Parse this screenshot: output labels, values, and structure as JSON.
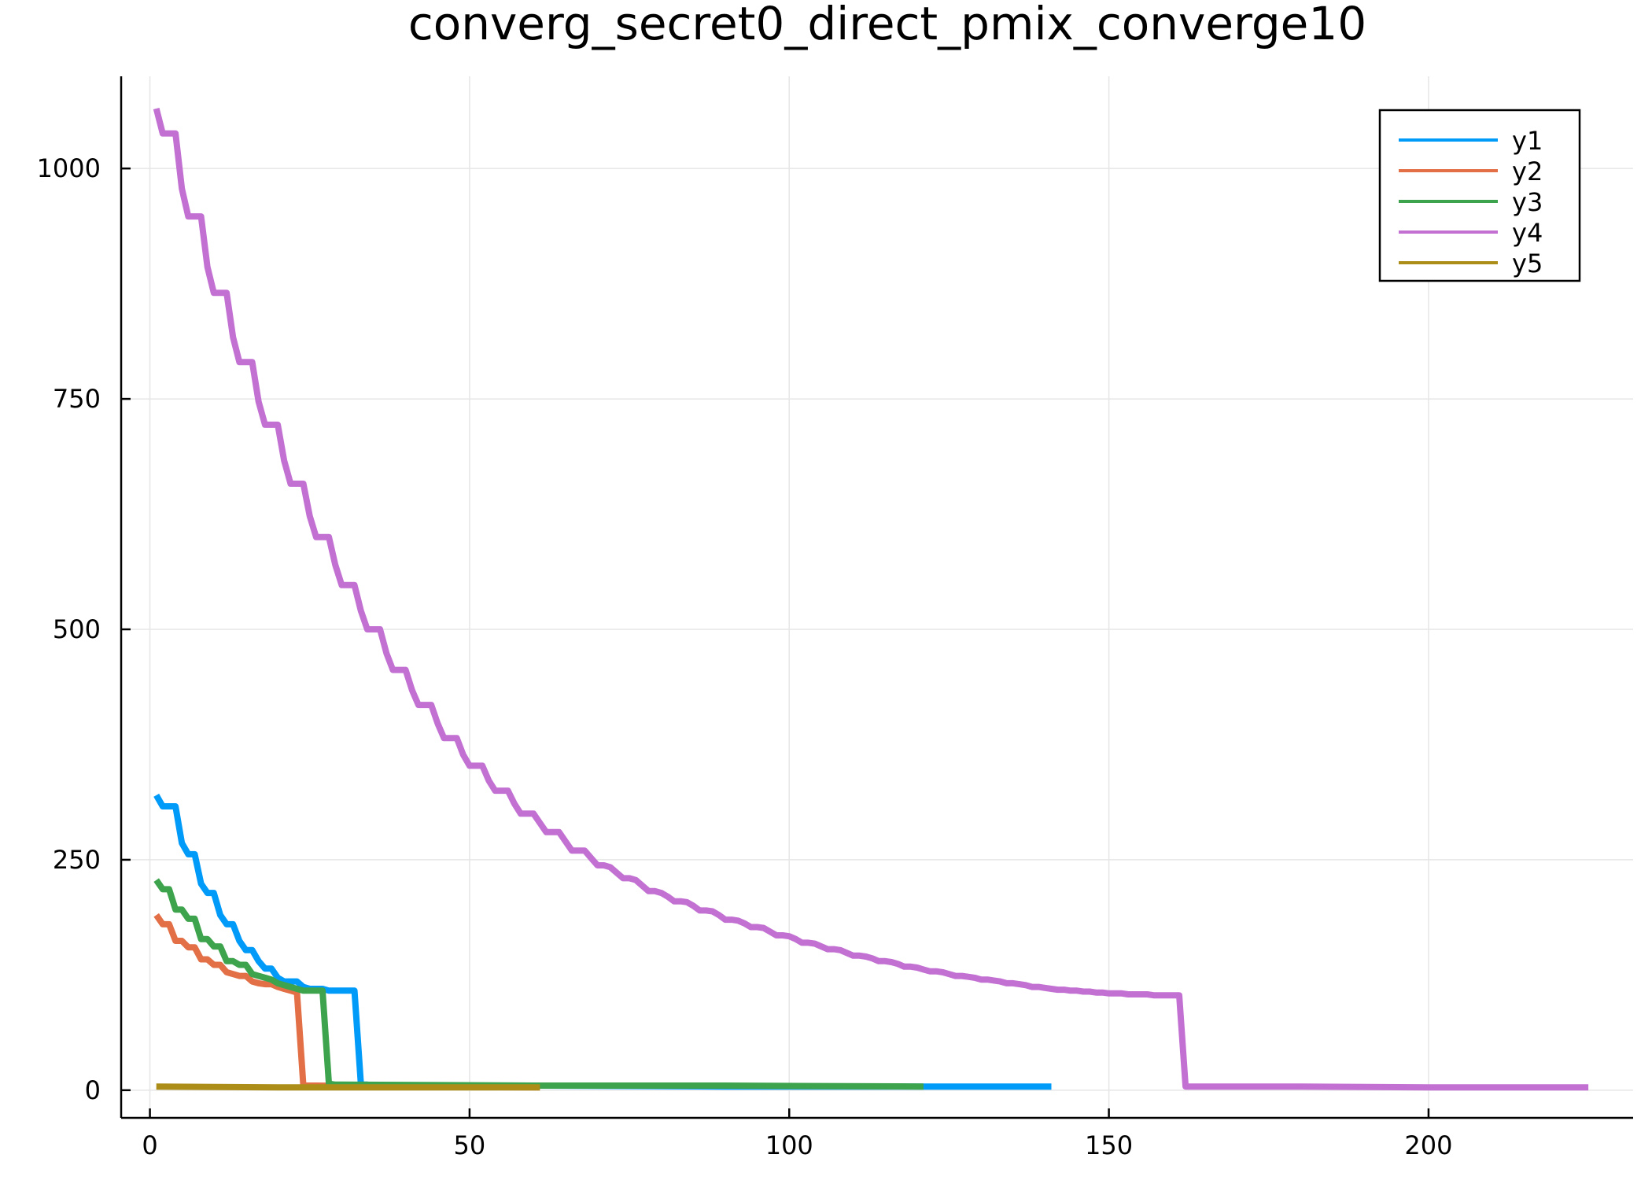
{
  "chart_data": {
    "type": "line",
    "title": "converg_secret0_direct_pmix_converge10",
    "xlabel": "",
    "ylabel": "",
    "xlim": [
      -4.5,
      232
    ],
    "ylim": [
      -30,
      1100
    ],
    "xticks": [
      0,
      50,
      100,
      150,
      200
    ],
    "yticks": [
      0,
      250,
      500,
      750,
      1000
    ],
    "grid": true,
    "legend_position": "top-right",
    "series": [
      {
        "name": "y1",
        "color": "#009af9",
        "x": [
          1,
          2,
          3,
          4,
          5,
          6,
          7,
          8,
          9,
          10,
          11,
          12,
          13,
          14,
          15,
          16,
          17,
          18,
          19,
          20,
          21,
          22,
          23,
          24,
          25,
          26,
          27,
          28,
          29,
          30,
          31,
          32,
          33,
          34,
          35,
          36,
          37,
          38,
          60,
          90,
          121,
          141
        ],
        "y": [
          320,
          308,
          308,
          308,
          268,
          256,
          256,
          224,
          214,
          214,
          190,
          180,
          180,
          162,
          152,
          152,
          140,
          132,
          132,
          122,
          118,
          118,
          118,
          112,
          110,
          110,
          110,
          108,
          108,
          108,
          108,
          108,
          6,
          6,
          5,
          5,
          5,
          5,
          5,
          4,
          4,
          4
        ]
      },
      {
        "name": "y2",
        "color": "#e26f46",
        "x": [
          1,
          2,
          3,
          4,
          5,
          6,
          7,
          8,
          9,
          10,
          11,
          12,
          13,
          14,
          15,
          16,
          17,
          18,
          19,
          20,
          21,
          22,
          23,
          24,
          25,
          26,
          40,
          61
        ],
        "y": [
          190,
          180,
          180,
          162,
          162,
          155,
          155,
          142,
          142,
          136,
          136,
          128,
          126,
          124,
          124,
          118,
          116,
          115,
          115,
          112,
          110,
          108,
          106,
          5,
          5,
          5,
          4,
          3
        ]
      },
      {
        "name": "y3",
        "color": "#3da44d",
        "x": [
          1,
          2,
          3,
          4,
          5,
          6,
          7,
          8,
          9,
          10,
          11,
          12,
          13,
          14,
          15,
          16,
          17,
          18,
          19,
          20,
          21,
          22,
          23,
          24,
          25,
          26,
          27,
          28,
          29,
          30,
          60,
          90,
          121
        ],
        "y": [
          228,
          218,
          218,
          196,
          196,
          186,
          186,
          164,
          164,
          156,
          156,
          140,
          140,
          136,
          136,
          126,
          124,
          122,
          120,
          116,
          114,
          112,
          110,
          108,
          108,
          108,
          108,
          7,
          6,
          6,
          5,
          5,
          4
        ]
      },
      {
        "name": "y4",
        "color": "#c271d2",
        "x": [
          1,
          2,
          3,
          4,
          5,
          6,
          7,
          8,
          9,
          10,
          11,
          12,
          13,
          14,
          15,
          16,
          17,
          18,
          19,
          20,
          21,
          22,
          23,
          24,
          25,
          26,
          27,
          28,
          29,
          30,
          31,
          32,
          33,
          34,
          35,
          36,
          37,
          38,
          39,
          40,
          41,
          42,
          43,
          44,
          45,
          46,
          47,
          48,
          49,
          50,
          51,
          52,
          53,
          54,
          55,
          56,
          57,
          58,
          59,
          60,
          61,
          62,
          63,
          64,
          65,
          66,
          67,
          68,
          69,
          70,
          71,
          72,
          73,
          74,
          75,
          76,
          77,
          78,
          79,
          80,
          81,
          82,
          83,
          84,
          85,
          86,
          87,
          88,
          89,
          90,
          91,
          92,
          93,
          94,
          95,
          96,
          97,
          98,
          99,
          100,
          101,
          102,
          103,
          104,
          105,
          106,
          107,
          108,
          109,
          110,
          111,
          112,
          113,
          114,
          115,
          116,
          117,
          118,
          119,
          120,
          121,
          122,
          123,
          124,
          125,
          126,
          127,
          128,
          129,
          130,
          131,
          132,
          133,
          134,
          135,
          136,
          137,
          138,
          139,
          140,
          141,
          142,
          143,
          144,
          145,
          146,
          147,
          148,
          149,
          150,
          151,
          152,
          153,
          154,
          155,
          156,
          157,
          158,
          159,
          160,
          161,
          162,
          163,
          180,
          200,
          225
        ],
        "y": [
          1065,
          1038,
          1038,
          1038,
          978,
          948,
          948,
          948,
          893,
          865,
          865,
          865,
          817,
          790,
          790,
          790,
          747,
          722,
          722,
          722,
          683,
          658,
          658,
          658,
          623,
          600,
          600,
          600,
          570,
          548,
          548,
          548,
          520,
          500,
          500,
          500,
          474,
          456,
          456,
          456,
          434,
          418,
          418,
          418,
          398,
          382,
          382,
          382,
          364,
          352,
          352,
          352,
          336,
          325,
          325,
          325,
          311,
          300,
          300,
          300,
          290,
          280,
          280,
          280,
          270,
          260,
          260,
          260,
          252,
          244,
          244,
          242,
          236,
          230,
          230,
          228,
          222,
          216,
          216,
          214,
          210,
          205,
          205,
          204,
          200,
          195,
          195,
          194,
          190,
          185,
          185,
          184,
          181,
          177,
          177,
          176,
          172,
          168,
          168,
          167,
          164,
          160,
          160,
          159,
          156,
          153,
          153,
          152,
          149,
          146,
          146,
          145,
          143,
          140,
          140,
          139,
          137,
          134,
          134,
          133,
          131,
          129,
          129,
          128,
          126,
          124,
          124,
          123,
          122,
          120,
          120,
          119,
          118,
          116,
          116,
          115,
          114,
          112,
          112,
          111,
          110,
          109,
          109,
          108,
          108,
          107,
          107,
          106,
          106,
          105,
          105,
          105,
          104,
          104,
          104,
          104,
          103,
          103,
          103,
          103,
          103,
          4,
          4,
          4,
          3,
          3
        ]
      },
      {
        "name": "y5",
        "color": "#ac8d18",
        "x": [
          1,
          20,
          40,
          61
        ],
        "y": [
          4,
          3,
          3,
          3
        ]
      }
    ]
  }
}
